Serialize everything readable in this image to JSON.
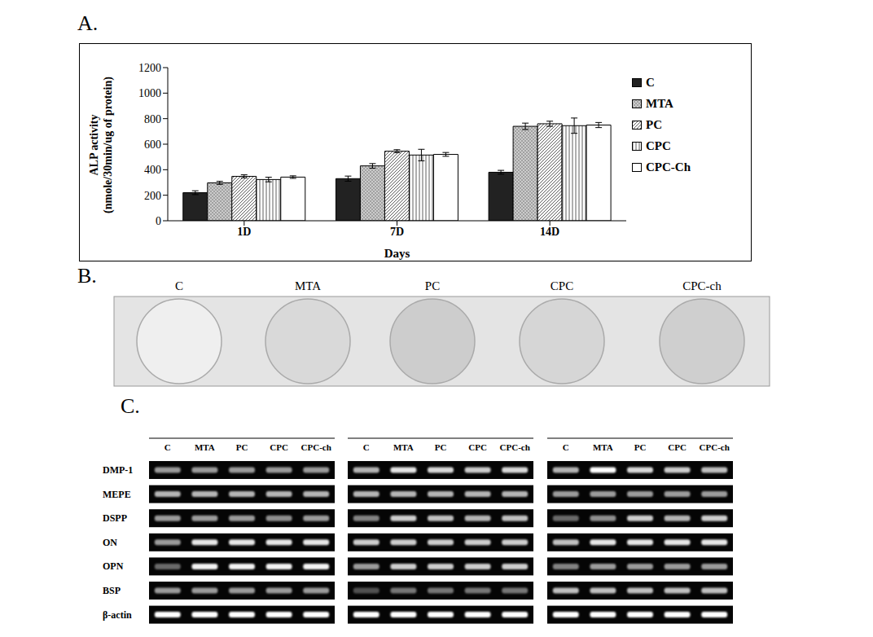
{
  "chart_data": {
    "type": "bar",
    "panel_label": "A.",
    "categories": [
      "1D",
      "7D",
      "14D"
    ],
    "xlabel": "Days",
    "ylabel": "ALP activity (nmole/30min/ug of protein)",
    "ylim": [
      0,
      1200
    ],
    "yticks": [
      0,
      200,
      400,
      600,
      800,
      1000,
      1200
    ],
    "legend": "right",
    "series": [
      {
        "name": "C",
        "color": "#222222",
        "values": [
          220,
          330,
          380
        ],
        "errors": [
          15,
          20,
          15
        ],
        "annotations": [
          null,
          null,
          null
        ]
      },
      {
        "name": "MTA",
        "color": "#cccccc",
        "values": [
          297,
          430,
          740
        ],
        "errors": [
          12,
          18,
          25
        ]
      },
      {
        "name": "PC",
        "color": "#ffffff",
        "values": [
          348,
          545,
          760
        ],
        "errors": [
          12,
          12,
          20
        ]
      },
      {
        "name": "CPC",
        "color": "#ffffff",
        "values": [
          323,
          515,
          745
        ],
        "errors": [
          18,
          45,
          60
        ]
      },
      {
        "name": "CPC-Ch",
        "color": "#ffffff",
        "values": [
          342,
          520,
          750
        ],
        "errors": [
          10,
          15,
          20
        ]
      }
    ]
  },
  "panel_b": {
    "panel_label": "B.",
    "wells": [
      {
        "label": "C",
        "color": "#efefef"
      },
      {
        "label": "MTA",
        "color": "#d9d9d9"
      },
      {
        "label": "PC",
        "color": "#cdcdcd"
      },
      {
        "label": "CPC",
        "color": "#d6d6d6"
      },
      {
        "label": "CPC-ch",
        "color": "#cfcfcf"
      }
    ]
  },
  "panel_c": {
    "panel_label": "C.",
    "lane_labels": [
      "C",
      "MTA",
      "PC",
      "CPC",
      "CPC-ch"
    ],
    "genes": [
      "DMP-1",
      "MEPE",
      "DSPP",
      "ON",
      "OPN",
      "BSP",
      "β-actin"
    ],
    "blocks": [
      {
        "intensities": [
          [
            0.6,
            0.6,
            0.6,
            0.6,
            0.6
          ],
          [
            0.7,
            0.7,
            0.7,
            0.7,
            0.7
          ],
          [
            0.6,
            0.6,
            0.6,
            0.55,
            0.6
          ],
          [
            0.6,
            0.9,
            0.9,
            0.9,
            0.9
          ],
          [
            0.4,
            0.95,
            0.95,
            0.95,
            0.95
          ],
          [
            0.6,
            0.6,
            0.6,
            0.6,
            0.6
          ],
          [
            1,
            1,
            1,
            1,
            1
          ]
        ]
      },
      {
        "intensities": [
          [
            0.7,
            0.9,
            0.85,
            0.8,
            0.85
          ],
          [
            0.7,
            0.7,
            0.7,
            0.7,
            0.7
          ],
          [
            0.5,
            0.8,
            0.75,
            0.7,
            0.75
          ],
          [
            0.8,
            0.8,
            0.8,
            0.8,
            0.8
          ],
          [
            0.6,
            0.8,
            0.8,
            0.8,
            0.8
          ],
          [
            0.3,
            0.45,
            0.45,
            0.45,
            0.45
          ],
          [
            1,
            1,
            1,
            1,
            1
          ]
        ]
      },
      {
        "intensities": [
          [
            0.7,
            1,
            0.85,
            0.8,
            0.75
          ],
          [
            0.6,
            0.6,
            0.6,
            0.6,
            0.6
          ],
          [
            0.4,
            0.55,
            0.8,
            0.7,
            0.8
          ],
          [
            0.75,
            0.9,
            0.9,
            0.9,
            0.9
          ],
          [
            0.5,
            0.6,
            0.6,
            0.6,
            0.6
          ],
          [
            0.75,
            0.75,
            0.75,
            0.75,
            0.75
          ],
          [
            1,
            1,
            1,
            1,
            1
          ]
        ]
      }
    ]
  }
}
